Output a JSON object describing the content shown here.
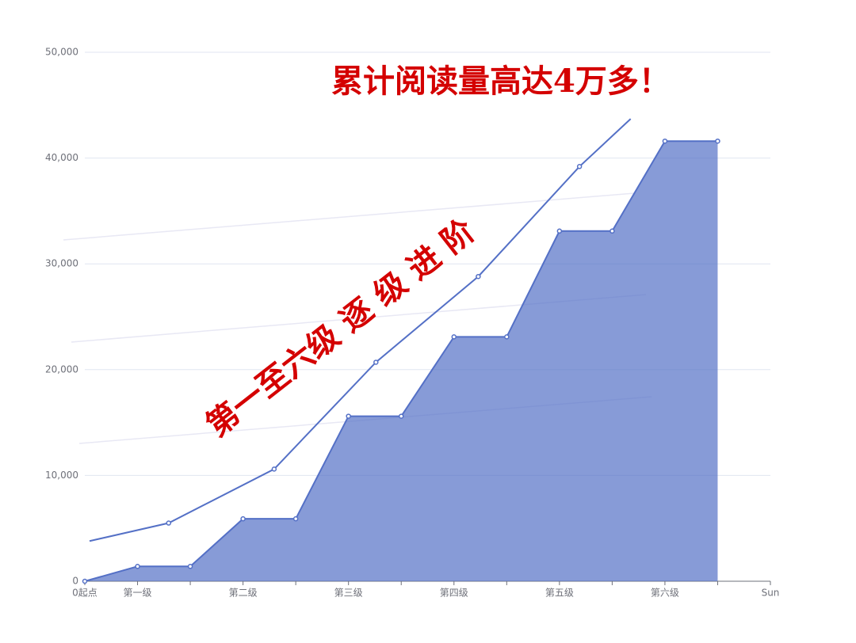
{
  "chart_data": {
    "type": "area",
    "categories": [
      "0起点",
      "第一级",
      null,
      "第二级",
      null,
      "第三级",
      null,
      "第四级",
      null,
      "第五级",
      null,
      "第六级",
      null,
      "Sun"
    ],
    "series": [
      {
        "type": "area",
        "color": "#5470c6",
        "values": [
          0,
          1400,
          1400,
          5900,
          5900,
          15600,
          15600,
          23100,
          23100,
          33100,
          33100,
          41600,
          41600,
          null
        ]
      },
      {
        "type": "line",
        "color": "#5470c6",
        "x": [
          0.09,
          1.59,
          3.59,
          5.52,
          7.46,
          9.38,
          10.35
        ],
        "values": [
          3800,
          5500,
          10600,
          20700,
          28800,
          39200,
          43700
        ]
      }
    ],
    "ylim": [
      0,
      50000
    ],
    "yticks": [
      0,
      {
        "value": 10000,
        "label": "10,000"
      },
      {
        "value": 20000,
        "label": "20,000"
      },
      {
        "value": 30000,
        "label": "30,000"
      },
      {
        "value": 40000,
        "label": "40,000"
      },
      {
        "value": 50000,
        "label": "50,000"
      }
    ],
    "grid": true,
    "annotations": [
      "累计阅读量高达4万多！",
      "第一至六级 逐 级 进 阶"
    ]
  }
}
